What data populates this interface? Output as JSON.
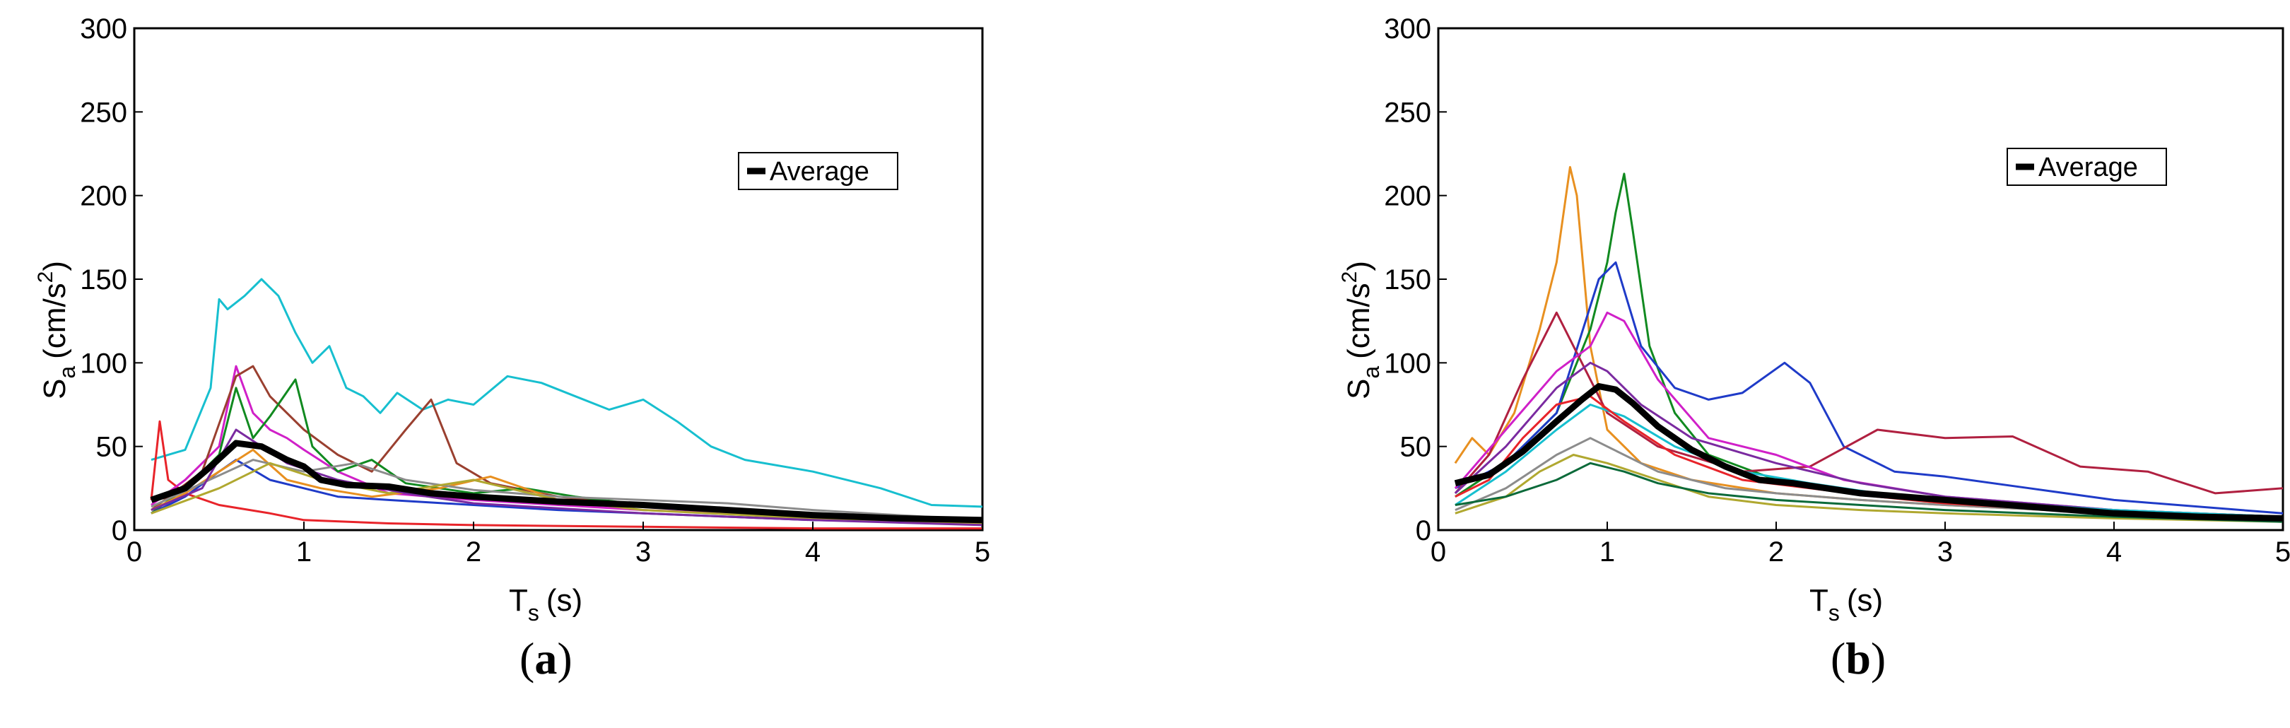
{
  "panels": [
    {
      "label_open": "(",
      "label_letter": "a",
      "label_close": ")"
    },
    {
      "label_open": "(",
      "label_letter": "b",
      "label_close": ")"
    }
  ],
  "chart_data": [
    {
      "type": "line",
      "title": "",
      "xlabel": "T",
      "xlabel_sub": "s",
      "xlabel_unit": "(s)",
      "ylabel": "S",
      "ylabel_sub": "a",
      "ylabel_unit": "(cm/s",
      "ylabel_sup": "2",
      "ylabel_close": ")",
      "xlim": [
        0,
        5
      ],
      "ylim": [
        0,
        300
      ],
      "xticks": [
        "0",
        "1",
        "2",
        "3",
        "4",
        "5"
      ],
      "yticks": [
        "0",
        "50",
        "100",
        "150",
        "200",
        "250",
        "300"
      ],
      "grid": false,
      "legend": {
        "label": "Average",
        "placement": "upper-right"
      },
      "series": [
        {
          "name": "record-cyan",
          "color": "#17bfcf",
          "width": 3,
          "x": [
            0.1,
            0.3,
            0.45,
            0.5,
            0.55,
            0.65,
            0.75,
            0.85,
            0.95,
            1.05,
            1.15,
            1.25,
            1.35,
            1.45,
            1.55,
            1.7,
            1.85,
            2.0,
            2.2,
            2.4,
            2.6,
            2.8,
            3.0,
            3.2,
            3.4,
            3.6,
            4.0,
            4.4,
            4.7,
            5.0
          ],
          "y": [
            42,
            48,
            85,
            138,
            132,
            140,
            150,
            140,
            118,
            100,
            110,
            85,
            80,
            70,
            82,
            72,
            78,
            75,
            92,
            88,
            80,
            72,
            78,
            65,
            50,
            42,
            35,
            25,
            15,
            14
          ]
        },
        {
          "name": "record-red",
          "color": "#e8242a",
          "width": 3,
          "x": [
            0.1,
            0.15,
            0.2,
            0.3,
            0.5,
            0.8,
            1.0,
            1.5,
            2.0,
            3.0,
            4.0,
            5.0
          ],
          "y": [
            18,
            65,
            30,
            22,
            15,
            10,
            6,
            4,
            3,
            2,
            1,
            1
          ]
        },
        {
          "name": "record-magenta",
          "color": "#d020c8",
          "width": 3,
          "x": [
            0.1,
            0.3,
            0.5,
            0.6,
            0.7,
            0.8,
            0.9,
            1.0,
            1.2,
            1.5,
            2.0,
            3.0,
            4.0,
            5.0
          ],
          "y": [
            15,
            30,
            50,
            98,
            70,
            60,
            55,
            48,
            35,
            22,
            18,
            12,
            8,
            5
          ]
        },
        {
          "name": "record-brown",
          "color": "#9a4030",
          "width": 3,
          "x": [
            0.1,
            0.4,
            0.6,
            0.7,
            0.8,
            1.0,
            1.2,
            1.4,
            1.6,
            1.75,
            1.9,
            2.1,
            2.5,
            3.0,
            4.0,
            5.0
          ],
          "y": [
            12,
            35,
            92,
            98,
            80,
            60,
            45,
            35,
            60,
            78,
            40,
            28,
            20,
            15,
            9,
            5
          ]
        },
        {
          "name": "record-green",
          "color": "#118a20",
          "width": 3,
          "x": [
            0.1,
            0.3,
            0.5,
            0.6,
            0.7,
            0.8,
            0.95,
            1.05,
            1.2,
            1.4,
            1.6,
            2.0,
            2.3,
            2.6,
            3.0,
            4.0,
            5.0
          ],
          "y": [
            10,
            25,
            45,
            85,
            55,
            68,
            90,
            50,
            35,
            42,
            28,
            22,
            25,
            20,
            15,
            8,
            4
          ]
        },
        {
          "name": "record-blue",
          "color": "#1f3bc8",
          "width": 3,
          "x": [
            0.1,
            0.3,
            0.5,
            0.6,
            0.8,
            1.0,
            1.2,
            1.5,
            2.0,
            2.5,
            3.0,
            4.0,
            5.0
          ],
          "y": [
            10,
            20,
            35,
            42,
            30,
            25,
            20,
            18,
            15,
            12,
            10,
            6,
            4
          ]
        },
        {
          "name": "record-orange",
          "color": "#e89020",
          "width": 3,
          "x": [
            0.1,
            0.3,
            0.5,
            0.7,
            0.9,
            1.1,
            1.4,
            1.8,
            2.1,
            2.5,
            3.0,
            4.0,
            5.0
          ],
          "y": [
            12,
            22,
            35,
            48,
            30,
            25,
            20,
            25,
            32,
            18,
            14,
            8,
            4
          ]
        },
        {
          "name": "record-gray",
          "color": "#8c8c8c",
          "width": 3,
          "x": [
            0.1,
            0.4,
            0.7,
            1.0,
            1.3,
            1.6,
            2.0,
            2.5,
            3.0,
            3.5,
            4.0,
            4.5,
            5.0
          ],
          "y": [
            14,
            28,
            42,
            35,
            40,
            30,
            24,
            20,
            18,
            16,
            12,
            9,
            6
          ]
        },
        {
          "name": "record-olive",
          "color": "#b0a830",
          "width": 3,
          "x": [
            0.1,
            0.5,
            0.8,
            1.1,
            1.5,
            2.0,
            2.5,
            3.0,
            4.0,
            5.0
          ],
          "y": [
            10,
            25,
            40,
            30,
            22,
            30,
            18,
            12,
            7,
            4
          ]
        },
        {
          "name": "record-purple",
          "color": "#7a2aa0",
          "width": 3,
          "x": [
            0.1,
            0.4,
            0.6,
            0.9,
            1.2,
            1.6,
            2.0,
            3.0,
            4.0,
            5.0
          ],
          "y": [
            12,
            25,
            60,
            40,
            30,
            22,
            16,
            10,
            6,
            3
          ]
        },
        {
          "name": "average",
          "color": "#000000",
          "width": 9,
          "x": [
            0.1,
            0.3,
            0.45,
            0.6,
            0.75,
            0.9,
            1.0,
            1.1,
            1.25,
            1.5,
            1.75,
            2.0,
            2.5,
            3.0,
            3.5,
            4.0,
            4.5,
            5.0
          ],
          "y": [
            18,
            25,
            38,
            52,
            50,
            42,
            38,
            30,
            27,
            26,
            22,
            20,
            17,
            15,
            12,
            9,
            7,
            6
          ]
        }
      ]
    },
    {
      "type": "line",
      "title": "",
      "xlabel": "T",
      "xlabel_sub": "s",
      "xlabel_unit": "(s)",
      "ylabel": "S",
      "ylabel_sub": "a",
      "ylabel_unit": "(cm/s",
      "ylabel_sup": "2",
      "ylabel_close": ")",
      "xlim": [
        0,
        5
      ],
      "ylim": [
        0,
        300
      ],
      "xticks": [
        "0",
        "1",
        "2",
        "3",
        "4",
        "5"
      ],
      "yticks": [
        "0",
        "50",
        "100",
        "150",
        "200",
        "250",
        "300"
      ],
      "grid": false,
      "legend": {
        "label": "Average",
        "placement": "upper-right"
      },
      "series": [
        {
          "name": "record-orange",
          "color": "#e89020",
          "width": 3,
          "x": [
            0.1,
            0.2,
            0.3,
            0.45,
            0.6,
            0.7,
            0.78,
            0.82,
            0.9,
            1.0,
            1.2,
            1.5,
            2.0,
            2.5,
            3.0,
            4.0,
            5.0
          ],
          "y": [
            40,
            55,
            45,
            70,
            120,
            160,
            217,
            200,
            110,
            60,
            40,
            30,
            22,
            18,
            15,
            10,
            8
          ]
        },
        {
          "name": "record-green",
          "color": "#118a20",
          "width": 3,
          "x": [
            0.1,
            0.4,
            0.7,
            0.9,
            1.0,
            1.05,
            1.1,
            1.15,
            1.25,
            1.4,
            1.6,
            2.0,
            2.5,
            3.0,
            4.0,
            5.0
          ],
          "y": [
            20,
            40,
            70,
            120,
            160,
            190,
            213,
            180,
            110,
            70,
            45,
            30,
            22,
            18,
            12,
            8
          ]
        },
        {
          "name": "record-blue",
          "color": "#1f3bc8",
          "width": 3,
          "x": [
            0.1,
            0.4,
            0.7,
            0.95,
            1.05,
            1.2,
            1.4,
            1.6,
            1.8,
            2.05,
            2.2,
            2.4,
            2.7,
            3.0,
            3.5,
            4.0,
            5.0
          ],
          "y": [
            25,
            40,
            70,
            150,
            160,
            110,
            85,
            78,
            82,
            100,
            88,
            50,
            35,
            32,
            25,
            18,
            10
          ]
        },
        {
          "name": "record-crimson",
          "color": "#b02040",
          "width": 3,
          "x": [
            0.1,
            0.3,
            0.5,
            0.7,
            0.85,
            1.0,
            1.3,
            1.8,
            2.2,
            2.6,
            3.0,
            3.4,
            3.8,
            4.2,
            4.6,
            5.0
          ],
          "y": [
            22,
            45,
            90,
            130,
            100,
            70,
            50,
            35,
            38,
            60,
            55,
            56,
            38,
            35,
            22,
            25
          ]
        },
        {
          "name": "record-magenta",
          "color": "#d020c8",
          "width": 3,
          "x": [
            0.1,
            0.4,
            0.7,
            0.9,
            1.0,
            1.1,
            1.3,
            1.6,
            2.0,
            2.4,
            3.0,
            4.0,
            5.0
          ],
          "y": [
            25,
            60,
            95,
            110,
            130,
            125,
            90,
            55,
            45,
            30,
            20,
            12,
            8
          ]
        },
        {
          "name": "record-purple",
          "color": "#7a2aa0",
          "width": 3,
          "x": [
            0.1,
            0.4,
            0.7,
            0.9,
            1.0,
            1.2,
            1.5,
            2.0,
            2.5,
            3.0,
            4.0,
            5.0
          ],
          "y": [
            22,
            50,
            85,
            100,
            95,
            75,
            55,
            40,
            28,
            20,
            12,
            7
          ]
        },
        {
          "name": "record-cyan",
          "color": "#17bfcf",
          "width": 3,
          "x": [
            0.1,
            0.4,
            0.7,
            0.9,
            1.1,
            1.4,
            1.8,
            2.2,
            2.6,
            3.0,
            4.0,
            5.0
          ],
          "y": [
            15,
            35,
            60,
            75,
            68,
            50,
            35,
            28,
            22,
            18,
            12,
            8
          ]
        },
        {
          "name": "record-gray",
          "color": "#8c8c8c",
          "width": 3,
          "x": [
            0.1,
            0.4,
            0.7,
            0.9,
            1.0,
            1.3,
            1.7,
            2.0,
            2.5,
            3.0,
            4.0,
            5.0
          ],
          "y": [
            12,
            25,
            45,
            55,
            50,
            35,
            25,
            22,
            18,
            15,
            10,
            6
          ]
        },
        {
          "name": "record-olive",
          "color": "#b0a830",
          "width": 3,
          "x": [
            0.1,
            0.4,
            0.6,
            0.8,
            1.0,
            1.3,
            1.6,
            2.0,
            2.5,
            3.0,
            4.0,
            5.0
          ],
          "y": [
            10,
            20,
            35,
            45,
            40,
            30,
            20,
            15,
            12,
            10,
            7,
            5
          ]
        },
        {
          "name": "record-darkgreen",
          "color": "#0b6a3a",
          "width": 3,
          "x": [
            0.1,
            0.4,
            0.7,
            0.9,
            1.1,
            1.3,
            1.6,
            2.0,
            2.5,
            3.0,
            4.0,
            5.0
          ],
          "y": [
            15,
            20,
            30,
            40,
            35,
            28,
            22,
            18,
            15,
            12,
            8,
            5
          ]
        },
        {
          "name": "record-red",
          "color": "#e8242a",
          "width": 3,
          "x": [
            0.1,
            0.3,
            0.5,
            0.7,
            0.9,
            1.1,
            1.4,
            1.8,
            2.2,
            2.6,
            3.0,
            4.0,
            5.0
          ],
          "y": [
            20,
            30,
            55,
            75,
            80,
            65,
            45,
            30,
            25,
            20,
            16,
            10,
            7
          ]
        },
        {
          "name": "average",
          "color": "#000000",
          "width": 9,
          "x": [
            0.1,
            0.3,
            0.5,
            0.7,
            0.85,
            0.95,
            1.05,
            1.15,
            1.3,
            1.5,
            1.7,
            1.9,
            2.1,
            2.5,
            3.0,
            3.5,
            4.0,
            4.5,
            5.0
          ],
          "y": [
            28,
            33,
            47,
            65,
            78,
            86,
            84,
            76,
            62,
            48,
            38,
            30,
            28,
            22,
            18,
            14,
            10,
            8,
            7
          ]
        }
      ]
    }
  ]
}
